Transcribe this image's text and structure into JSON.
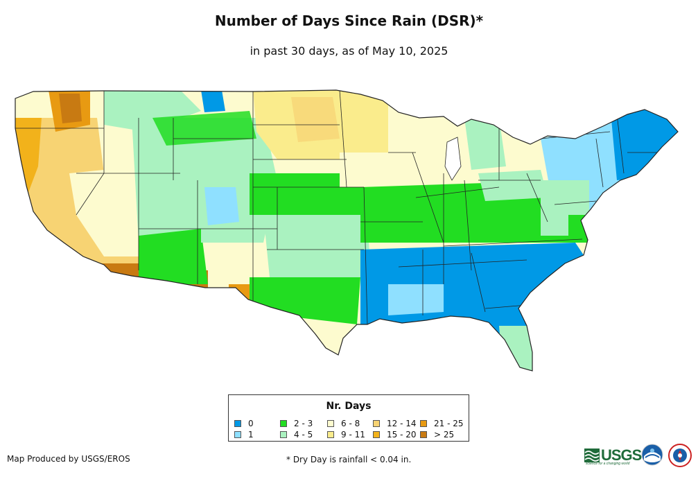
{
  "header": {
    "title": "Number of Days Since Rain (DSR)*",
    "subtitle": "in past 30 days, as of May 10, 2025"
  },
  "legend": {
    "title": "Nr. Days",
    "items": [
      {
        "label": "0",
        "color": "#0099e6"
      },
      {
        "label": "1",
        "color": "#8fe0ff"
      },
      {
        "label": "2 - 3",
        "color": "#22dd22"
      },
      {
        "label": "4 - 5",
        "color": "#aaf2c0"
      },
      {
        "label": "6 - 8",
        "color": "#fdfbcf"
      },
      {
        "label": "9 - 11",
        "color": "#faec8c"
      },
      {
        "label": "12 - 14",
        "color": "#f7d373"
      },
      {
        "label": "15 - 20",
        "color": "#f2b21b"
      },
      {
        "label": "21 - 25",
        "color": "#e89a12"
      },
      {
        "label": "> 25",
        "color": "#c87a12"
      }
    ]
  },
  "footer": {
    "credit": "Map Produced by USGS/EROS",
    "footnote": "* Dry Day is rainfall < 0.04 in."
  },
  "logos": {
    "usgs": "USGS",
    "usgs_tagline": "science for a changing world"
  }
}
